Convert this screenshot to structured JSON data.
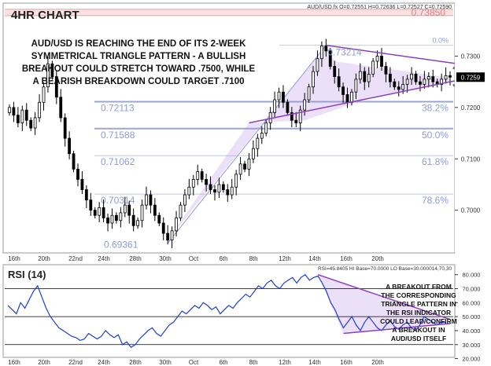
{
  "chart_data": [
    {
      "type": "candlestick",
      "title": "4HR CHART",
      "header": "AUD/USD.fx O=0.72551 H=0.72636 L=0.72527 C=0.72590",
      "annotation": "AUD/USD IS REACHING THE END OF ITS 2-WEEK SYMMETRICAL TRIANGLE PATTERN - A BULLISH BREAKOUT COULD STRETCH TOWARD .7500, WHILE A BEARISH BREAKDOWN COULD TARGET .7100",
      "annotation_lines": [
        "AUD/USD IS REACHING THE END OF ITS 2-WEEK",
        "SYMMETRICAL TRIANGLE PATTERN - A BULLISH",
        "BREAKOUT COULD STRETCH TOWARD .7500, WHILE",
        "A BEARISH BREAKDOWN COULD TARGET .7100"
      ],
      "ylim": [
        0.692,
        0.74
      ],
      "y_ticks": [
        "0.7300",
        "0.7259",
        "0.7200",
        "0.7100",
        "0.7000"
      ],
      "x_ticks": [
        "16th",
        "20th",
        "22nd",
        "24th",
        "28th",
        "30th",
        "Oct",
        "6th",
        "8th",
        "12th",
        "14th",
        "16th",
        "20th"
      ],
      "current_price": 0.7259,
      "resistance": {
        "label": "0.73850",
        "value": 0.7385
      },
      "swing_high": {
        "label": "0.73214",
        "value": 0.7321
      },
      "swing_low": {
        "label": "0.69361",
        "value": 0.6936
      },
      "fib_levels": [
        {
          "price_label": "0.72113",
          "pct": "38.2%",
          "value": 0.72113
        },
        {
          "price_label": "0.71588",
          "pct": "50.0%",
          "value": 0.71588
        },
        {
          "price_label": "0.71062",
          "pct": "61.8%",
          "value": 0.71062
        },
        {
          "price_label": "0.70314",
          "pct": "78.6%",
          "value": 0.70314
        }
      ],
      "pct_zero_label": "0.0%",
      "price_path": [
        0.72,
        0.7185,
        0.717,
        0.7195,
        0.7175,
        0.716,
        0.718,
        0.721,
        0.724,
        0.7285,
        0.726,
        0.722,
        0.718,
        0.714,
        0.711,
        0.708,
        0.706,
        0.704,
        0.702,
        0.7,
        0.699,
        0.7005,
        0.6985,
        0.6975,
        0.699,
        0.698,
        0.6995,
        0.701,
        0.699,
        0.697,
        0.698,
        0.701,
        0.703,
        0.701,
        0.699,
        0.6975,
        0.6955,
        0.6942,
        0.696,
        0.6985,
        0.701,
        0.703,
        0.7045,
        0.706,
        0.7075,
        0.706,
        0.705,
        0.704,
        0.7035,
        0.705,
        0.704,
        0.703,
        0.7045,
        0.707,
        0.709,
        0.708,
        0.71,
        0.712,
        0.714,
        0.715,
        0.717,
        0.719,
        0.7215,
        0.723,
        0.721,
        0.719,
        0.7175,
        0.717,
        0.7195,
        0.7215,
        0.724,
        0.727,
        0.7295,
        0.732,
        0.731,
        0.728,
        0.726,
        0.724,
        0.7225,
        0.721,
        0.723,
        0.7255,
        0.727,
        0.725,
        0.7265,
        0.729,
        0.73,
        0.728,
        0.7265,
        0.725,
        0.724,
        0.7235,
        0.7245,
        0.7255,
        0.7265,
        0.725,
        0.7245,
        0.7255,
        0.726,
        0.725,
        0.7245,
        0.7255,
        0.7262,
        0.7259
      ]
    },
    {
      "type": "line",
      "title": "RSI (14)",
      "header": "RSI=45.8405 HI Base=70.0000 LO Base=30.0000",
      "header_right": "14,70,30",
      "annotation": "A BREAKOUT FROM THE CORRESPONDING TRIANGLE PATTERN IN THE RSI INDICATOR COULD LEAD/CONFIRM A BREAKOUT IN AUD/USD ITSELF",
      "annotation_lines": [
        "A BREAKOUT FROM",
        "THE CORRESPONDING",
        "TRIANGLE PATTERN IN",
        "THE RSI INDICATOR",
        "COULD LEAD/CONFIRM",
        "A BREAKOUT IN",
        "AUD/USD ITSELF"
      ],
      "ylim": [
        22,
        86
      ],
      "y_ticks": [
        "80.000",
        "70.000",
        "60.000",
        "50.000",
        "40.000",
        "30.000",
        "20.000"
      ],
      "hi_base": 70,
      "lo_base": 30,
      "x_ticks": [
        "16th",
        "20th",
        "22nd",
        "24th",
        "28th",
        "30th",
        "Oct",
        "6th",
        "8th",
        "12th",
        "14th",
        "16th",
        "20th"
      ],
      "values": [
        58,
        55,
        52,
        60,
        56,
        62,
        68,
        72,
        64,
        56,
        50,
        46,
        42,
        40,
        38,
        36,
        35,
        33,
        34,
        38,
        36,
        34,
        36,
        40,
        37,
        35,
        37,
        30,
        32,
        28,
        30,
        34,
        37,
        40,
        42,
        38,
        36,
        40,
        44,
        46,
        50,
        54,
        52,
        55,
        58,
        56,
        60,
        58,
        55,
        57,
        52,
        55,
        58,
        56,
        60,
        63,
        66,
        64,
        68,
        72,
        70,
        74,
        76,
        72,
        70,
        74,
        76,
        78,
        74,
        78,
        80,
        76,
        78,
        79,
        74,
        68,
        60,
        55,
        48,
        42,
        46,
        50,
        44,
        40,
        46,
        50,
        46,
        42,
        40,
        44,
        47,
        43,
        41,
        44,
        46,
        42,
        40,
        44,
        50,
        48,
        46,
        44,
        46,
        45.84
      ]
    }
  ]
}
